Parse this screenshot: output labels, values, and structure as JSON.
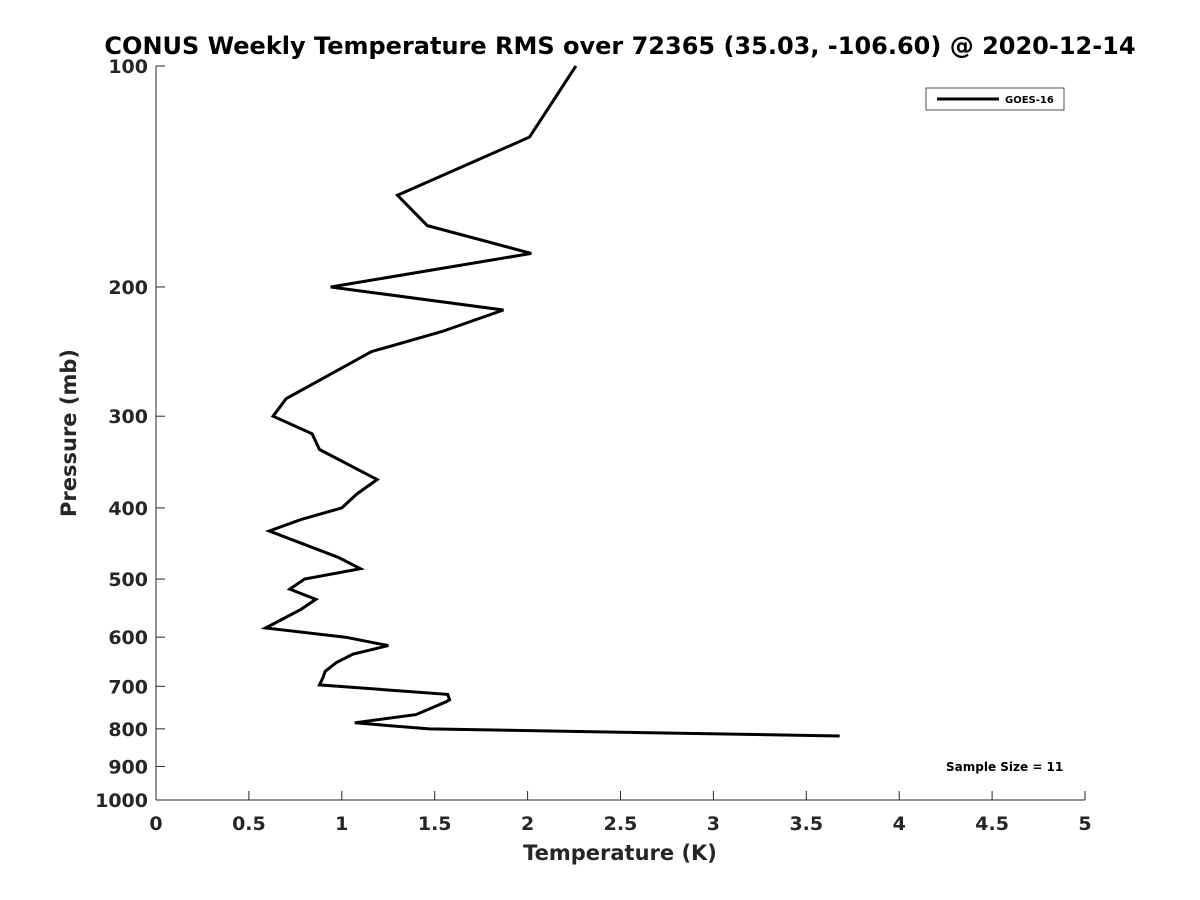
{
  "chart_data": {
    "type": "line",
    "title": "CONUS Weekly Temperature RMS over 72365 (35.03, -106.60) @ 2020-12-14",
    "xlabel": "Temperature (K)",
    "ylabel": "Pressure (mb)",
    "xlim": [
      0,
      5
    ],
    "ylim": [
      100,
      1000
    ],
    "yscale": "log",
    "yreversed": true,
    "xticks": [
      0,
      0.5,
      1,
      1.5,
      2,
      2.5,
      3,
      3.5,
      4,
      4.5,
      5
    ],
    "xtick_labels": [
      "0",
      "0.5",
      "1",
      "1.5",
      "2",
      "2.5",
      "3",
      "3.5",
      "4",
      "4.5",
      "5"
    ],
    "yticks": [
      100,
      200,
      300,
      400,
      500,
      600,
      700,
      800,
      900,
      1000
    ],
    "ytick_labels": [
      "100",
      "200",
      "300",
      "400",
      "500",
      "600",
      "700",
      "800",
      "900",
      "1000"
    ],
    "grid": false,
    "legend_position": "top-right",
    "annotation": "Sample Size = 11",
    "series": [
      {
        "name": "GOES-16",
        "color": "#000000",
        "points": [
          {
            "x": 2.26,
            "y": 100
          },
          {
            "x": 2.01,
            "y": 125
          },
          {
            "x": 1.3,
            "y": 150
          },
          {
            "x": 1.46,
            "y": 165
          },
          {
            "x": 2.02,
            "y": 180
          },
          {
            "x": 0.94,
            "y": 200
          },
          {
            "x": 1.87,
            "y": 215
          },
          {
            "x": 1.54,
            "y": 230
          },
          {
            "x": 1.16,
            "y": 245
          },
          {
            "x": 0.7,
            "y": 284
          },
          {
            "x": 0.63,
            "y": 300
          },
          {
            "x": 0.84,
            "y": 317
          },
          {
            "x": 0.88,
            "y": 333
          },
          {
            "x": 1.19,
            "y": 366
          },
          {
            "x": 1.08,
            "y": 383
          },
          {
            "x": 1.0,
            "y": 400
          },
          {
            "x": 0.78,
            "y": 415
          },
          {
            "x": 0.61,
            "y": 430
          },
          {
            "x": 0.98,
            "y": 467
          },
          {
            "x": 1.1,
            "y": 484
          },
          {
            "x": 0.8,
            "y": 500
          },
          {
            "x": 0.72,
            "y": 516
          },
          {
            "x": 0.86,
            "y": 533
          },
          {
            "x": 0.78,
            "y": 550
          },
          {
            "x": 0.59,
            "y": 583
          },
          {
            "x": 1.02,
            "y": 600
          },
          {
            "x": 1.25,
            "y": 616
          },
          {
            "x": 1.06,
            "y": 633
          },
          {
            "x": 0.97,
            "y": 650
          },
          {
            "x": 0.91,
            "y": 668
          },
          {
            "x": 0.9,
            "y": 680
          },
          {
            "x": 0.88,
            "y": 697
          },
          {
            "x": 1.57,
            "y": 718
          },
          {
            "x": 1.58,
            "y": 730
          },
          {
            "x": 1.56,
            "y": 735
          },
          {
            "x": 1.4,
            "y": 765
          },
          {
            "x": 1.07,
            "y": 785
          },
          {
            "x": 1.47,
            "y": 800
          },
          {
            "x": 3.68,
            "y": 818
          }
        ]
      }
    ]
  }
}
